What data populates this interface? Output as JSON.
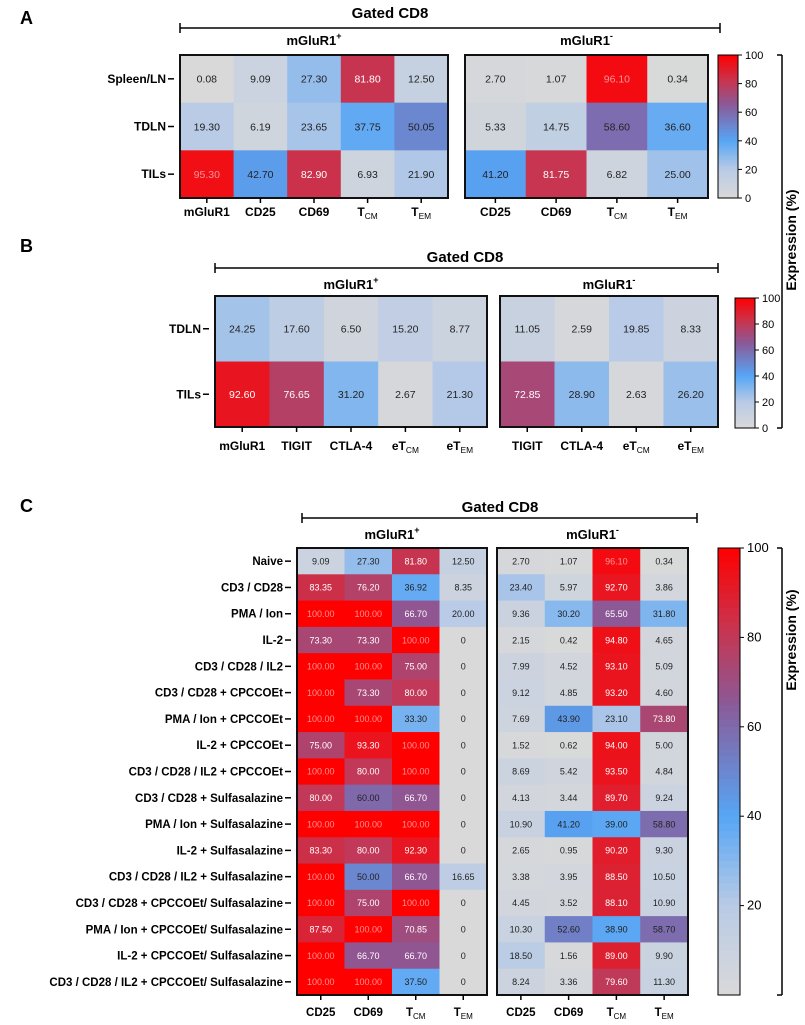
{
  "colorscale": {
    "stops": [
      {
        "v": 0,
        "color": "#d9d9d9"
      },
      {
        "v": 20,
        "color": "#b9cbe6"
      },
      {
        "v": 40,
        "color": "#56a5f5"
      },
      {
        "v": 65,
        "color": "#8a5a98"
      },
      {
        "v": 82,
        "color": "#c8344f"
      },
      {
        "v": 100,
        "color": "#ff0000"
      }
    ]
  },
  "expression_label": "Expression (%)",
  "chart_data": [
    {
      "type": "heatmap",
      "panel": "A",
      "title": "Gated CD8",
      "rows": [
        "Spleen/LN",
        "TDLN",
        "TILs"
      ],
      "colorbar": {
        "range": [
          0,
          100
        ],
        "ticks": [
          "100",
          "80",
          "60",
          "40",
          "20",
          "0"
        ]
      },
      "groups": [
        {
          "name": "mGluR1",
          "sup": "+",
          "columns": [
            {
              "t": "mGluR1"
            },
            {
              "t": "CD25"
            },
            {
              "t": "CD69"
            },
            {
              "t": "T",
              "sub": "CM"
            },
            {
              "t": "T",
              "sub": "EM"
            }
          ],
          "values": [
            [
              "0.08",
              "9.09",
              "27.30",
              "81.80",
              "12.50"
            ],
            [
              "19.30",
              "6.19",
              "23.65",
              "37.75",
              "50.05"
            ],
            [
              "95.30",
              "42.70",
              "82.90",
              "6.93",
              "21.90"
            ]
          ]
        },
        {
          "name": "mGluR1",
          "sup": "-",
          "columns": [
            {
              "t": "CD25"
            },
            {
              "t": "CD69"
            },
            {
              "t": "T",
              "sub": "CM"
            },
            {
              "t": "T",
              "sub": "EM"
            }
          ],
          "values": [
            [
              "2.70",
              "1.07",
              "96.10",
              "0.34"
            ],
            [
              "5.33",
              "14.75",
              "58.60",
              "36.60"
            ],
            [
              "41.20",
              "81.75",
              "6.82",
              "25.00"
            ]
          ]
        }
      ]
    },
    {
      "type": "heatmap",
      "panel": "B",
      "title": "Gated CD8",
      "rows": [
        "TDLN",
        "TILs"
      ],
      "colorbar": {
        "range": [
          0,
          100
        ],
        "ticks": [
          "100",
          "80",
          "60",
          "40",
          "20",
          "0"
        ]
      },
      "groups": [
        {
          "name": "mGluR1",
          "sup": "+",
          "columns": [
            {
              "t": "mGluR1"
            },
            {
              "t": "TIGIT"
            },
            {
              "t": "CTLA-4"
            },
            {
              "t": "eT",
              "sub": "CM"
            },
            {
              "t": "eT",
              "sub": "EM"
            }
          ],
          "values": [
            [
              "24.25",
              "17.60",
              "6.50",
              "15.20",
              "8.77"
            ],
            [
              "92.60",
              "76.65",
              "31.20",
              "2.67",
              "21.30"
            ]
          ]
        },
        {
          "name": "mGluR1",
          "sup": "-",
          "columns": [
            {
              "t": "TIGIT"
            },
            {
              "t": "CTLA-4"
            },
            {
              "t": "eT",
              "sub": "CM"
            },
            {
              "t": "eT",
              "sub": "EM"
            }
          ],
          "values": [
            [
              "11.05",
              "2.59",
              "19.85",
              "8.33"
            ],
            [
              "72.85",
              "28.90",
              "2.63",
              "26.20"
            ]
          ]
        }
      ]
    },
    {
      "type": "heatmap",
      "panel": "C",
      "title": "Gated CD8",
      "rows": [
        "Naive",
        "CD3 / CD28",
        "PMA / Ion",
        "IL-2",
        "CD3 / CD28 / IL2",
        "CD3 / CD28 + CPCCOEt",
        "PMA / Ion +  CPCCOEt",
        "IL-2 +  CPCCOEt",
        "CD3 / CD28 / IL2 +  CPCCOEt",
        "CD3 / CD28 + Sulfasalazine",
        "PMA / Ion + Sulfasalazine",
        "IL-2 + Sulfasalazine",
        "CD3 / CD28 / IL2 + Sulfasalazine",
        "CD3 / CD28 +  CPCCOEt/ Sulfasalazine",
        "PMA / Ion +  CPCCOEt/ Sulfasalazine",
        "IL-2 +  CPCCOEt/ Sulfasalazine",
        "CD3 / CD28 / IL2 +  CPCCOEt/ Sulfasalazine"
      ],
      "colorbar": {
        "range": [
          0,
          100
        ],
        "ticks": [
          "100",
          "80",
          "60",
          "40",
          "20"
        ]
      },
      "groups": [
        {
          "name": "mGluR1",
          "sup": "+",
          "columns": [
            {
              "t": "CD25"
            },
            {
              "t": "CD69"
            },
            {
              "t": "T",
              "sub": "CM"
            },
            {
              "t": "T",
              "sub": "EM"
            }
          ],
          "values": [
            [
              "9.09",
              "27.30",
              "81.80",
              "12.50"
            ],
            [
              "83.35",
              "76.20",
              "36.92",
              "8.35"
            ],
            [
              "100.00",
              "100.00",
              "66.70",
              "20.00"
            ],
            [
              "73.30",
              "73.30",
              "100.00",
              "0"
            ],
            [
              "100.00",
              "100.00",
              "75.00",
              "0"
            ],
            [
              "100.00",
              "73.30",
              "80.00",
              "0"
            ],
            [
              "100.00",
              "100.00",
              "33.30",
              "0"
            ],
            [
              "75.00",
              "93.30",
              "100.00",
              "0"
            ],
            [
              "100.00",
              "80.00",
              "100.00",
              "0"
            ],
            [
              "80.00",
              "60.00",
              "66.70",
              "0"
            ],
            [
              "100.00",
              "100.00",
              "100.00",
              "0"
            ],
            [
              "83.30",
              "80.00",
              "92.30",
              "0"
            ],
            [
              "100.00",
              "50.00",
              "66.70",
              "16.65"
            ],
            [
              "100.00",
              "75.00",
              "100.00",
              "0"
            ],
            [
              "87.50",
              "100.00",
              "70.85",
              "0"
            ],
            [
              "100.00",
              "66.70",
              "66.70",
              "0"
            ],
            [
              "100.00",
              "100.00",
              "37.50",
              "0"
            ]
          ]
        },
        {
          "name": "mGluR1",
          "sup": "-",
          "columns": [
            {
              "t": "CD25"
            },
            {
              "t": "CD69"
            },
            {
              "t": "T",
              "sub": "CM"
            },
            {
              "t": "T",
              "sub": "EM"
            }
          ],
          "values": [
            [
              "2.70",
              "1.07",
              "96.10",
              "0.34"
            ],
            [
              "23.40",
              "5.97",
              "92.70",
              "3.86"
            ],
            [
              "9.36",
              "30.20",
              "65.50",
              "31.80"
            ],
            [
              "2.15",
              "0.42",
              "94.80",
              "4.65"
            ],
            [
              "7.99",
              "4.52",
              "93.10",
              "5.09"
            ],
            [
              "9.12",
              "4.85",
              "93.20",
              "4.60"
            ],
            [
              "7.69",
              "43.90",
              "23.10",
              "73.80"
            ],
            [
              "1.52",
              "0.62",
              "94.00",
              "5.00"
            ],
            [
              "8.69",
              "5.42",
              "93.50",
              "4.84"
            ],
            [
              "4.13",
              "3.44",
              "89.70",
              "9.24"
            ],
            [
              "10.90",
              "41.20",
              "39.00",
              "58.80"
            ],
            [
              "2.65",
              "0.95",
              "90.20",
              "9.30"
            ],
            [
              "3.38",
              "3.95",
              "88.50",
              "10.50"
            ],
            [
              "4.45",
              "3.52",
              "88.10",
              "10.90"
            ],
            [
              "10.30",
              "52.60",
              "38.90",
              "58.70"
            ],
            [
              "18.50",
              "1.56",
              "89.00",
              "9.90"
            ],
            [
              "8.24",
              "3.36",
              "79.60",
              "11.30"
            ]
          ]
        }
      ]
    }
  ]
}
